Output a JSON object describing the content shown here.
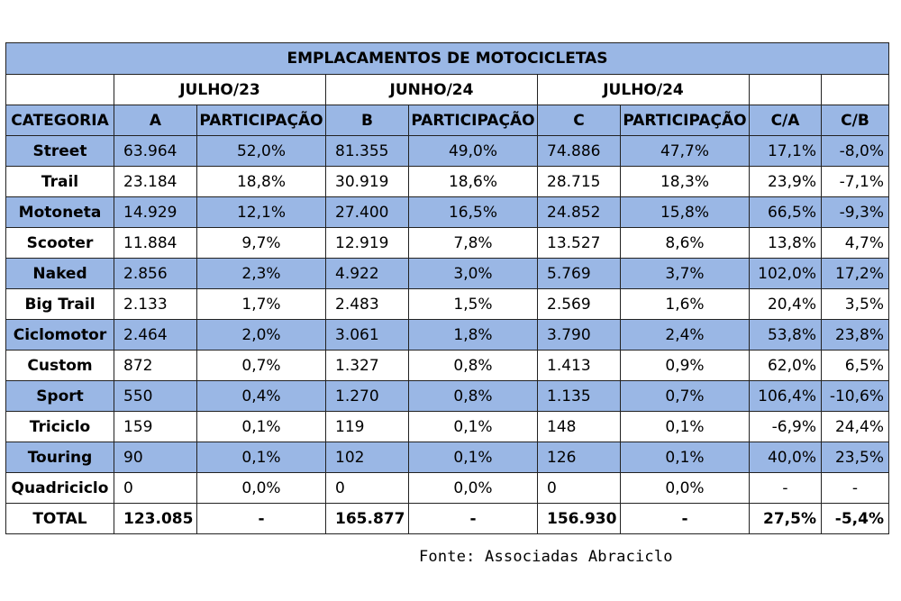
{
  "table": {
    "title": "EMPLACAMENTOS DE MOTOCICLETAS",
    "periods": [
      "JULHO/23",
      "JUNHO/24",
      "JULHO/24"
    ],
    "columns": [
      "CATEGORIA",
      "A",
      "PARTICIPAÇÃO",
      "B",
      "PARTICIPAÇÃO",
      "C",
      "PARTICIPAÇÃO",
      "C/A",
      "C/B"
    ],
    "rows": [
      [
        "Street",
        "63.964",
        "52,0%",
        "81.355",
        "49,0%",
        "74.886",
        "47,7%",
        "17,1%",
        "-8,0%"
      ],
      [
        "Trail",
        "23.184",
        "18,8%",
        "30.919",
        "18,6%",
        "28.715",
        "18,3%",
        "23,9%",
        "-7,1%"
      ],
      [
        "Motoneta",
        "14.929",
        "12,1%",
        "27.400",
        "16,5%",
        "24.852",
        "15,8%",
        "66,5%",
        "-9,3%"
      ],
      [
        "Scooter",
        "11.884",
        "9,7%",
        "12.919",
        "7,8%",
        "13.527",
        "8,6%",
        "13,8%",
        "4,7%"
      ],
      [
        "Naked",
        "2.856",
        "2,3%",
        "4.922",
        "3,0%",
        "5.769",
        "3,7%",
        "102,0%",
        "17,2%"
      ],
      [
        "Big Trail",
        "2.133",
        "1,7%",
        "2.483",
        "1,5%",
        "2.569",
        "1,6%",
        "20,4%",
        "3,5%"
      ],
      [
        "Ciclomotor",
        "2.464",
        "2,0%",
        "3.061",
        "1,8%",
        "3.790",
        "2,4%",
        "53,8%",
        "23,8%"
      ],
      [
        "Custom",
        "872",
        "0,7%",
        "1.327",
        "0,8%",
        "1.413",
        "0,9%",
        "62,0%",
        "6,5%"
      ],
      [
        "Sport",
        "550",
        "0,4%",
        "1.270",
        "0,8%",
        "1.135",
        "0,7%",
        "106,4%",
        "-10,6%"
      ],
      [
        "Triciclo",
        "159",
        "0,1%",
        "119",
        "0,1%",
        "148",
        "0,1%",
        "-6,9%",
        "24,4%"
      ],
      [
        "Touring",
        "90",
        "0,1%",
        "102",
        "0,1%",
        "126",
        "0,1%",
        "40,0%",
        "23,5%"
      ],
      [
        "Quadriciclo",
        "0",
        "0,0%",
        "0",
        "0,0%",
        "0",
        "0,0%",
        "-",
        "-"
      ]
    ],
    "total": [
      "TOTAL",
      "123.085",
      "-",
      "165.877",
      "-",
      "156.930",
      "-",
      "27,5%",
      "-5,4%"
    ]
  },
  "source": "Fonte: Associadas Abraciclo",
  "colors": {
    "header_fill": "#9ab7e5",
    "border": "#222222"
  }
}
